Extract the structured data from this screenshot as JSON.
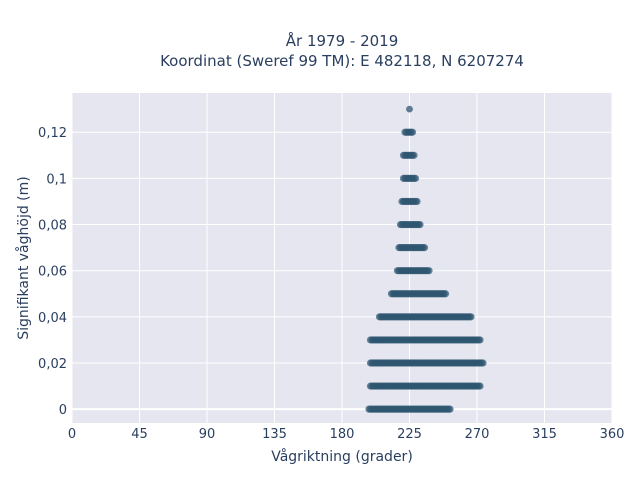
{
  "chart_data": {
    "type": "scatter",
    "title": "År 1979 - 2019",
    "subtitle": "Koordinat (Sweref 99 TM): E 482118, N 6207274",
    "xlabel": "Vågriktning (grader)",
    "ylabel": "Signifikant våghöjd (m)",
    "xlim": [
      0,
      360
    ],
    "ylim": [
      -0.006,
      0.137
    ],
    "x_ticks": [
      0,
      45,
      90,
      135,
      180,
      225,
      270,
      315,
      360
    ],
    "x_tick_labels": [
      "0",
      "45",
      "90",
      "135",
      "180",
      "225",
      "270",
      "315",
      "360"
    ],
    "y_ticks": [
      0,
      0.02,
      0.04,
      0.06,
      0.08,
      0.1,
      0.12
    ],
    "y_tick_labels": [
      "0",
      "0,02",
      "0,04",
      "0,06",
      "0,08",
      "0,1",
      "0,12"
    ],
    "grid": true,
    "legend": "none",
    "marker_color": "#2e5570",
    "plot_background": "#e5e6ef",
    "grid_color": "#ffffff",
    "bands": [
      {
        "y": 0.0,
        "x_min": 198,
        "x_max": 252
      },
      {
        "y": 0.01,
        "x_min": 199,
        "x_max": 272
      },
      {
        "y": 0.02,
        "x_min": 199,
        "x_max": 274
      },
      {
        "y": 0.03,
        "x_min": 199,
        "x_max": 272
      },
      {
        "y": 0.04,
        "x_min": 205,
        "x_max": 266
      },
      {
        "y": 0.05,
        "x_min": 213,
        "x_max": 249
      },
      {
        "y": 0.06,
        "x_min": 217,
        "x_max": 238
      },
      {
        "y": 0.07,
        "x_min": 218,
        "x_max": 235
      },
      {
        "y": 0.08,
        "x_min": 219,
        "x_max": 232
      },
      {
        "y": 0.09,
        "x_min": 220,
        "x_max": 230
      },
      {
        "y": 0.1,
        "x_min": 221,
        "x_max": 229
      },
      {
        "y": 0.11,
        "x_min": 221,
        "x_max": 228
      },
      {
        "y": 0.12,
        "x_min": 222,
        "x_max": 227
      },
      {
        "y": 0.13,
        "x_min": 225,
        "x_max": 225
      }
    ]
  }
}
